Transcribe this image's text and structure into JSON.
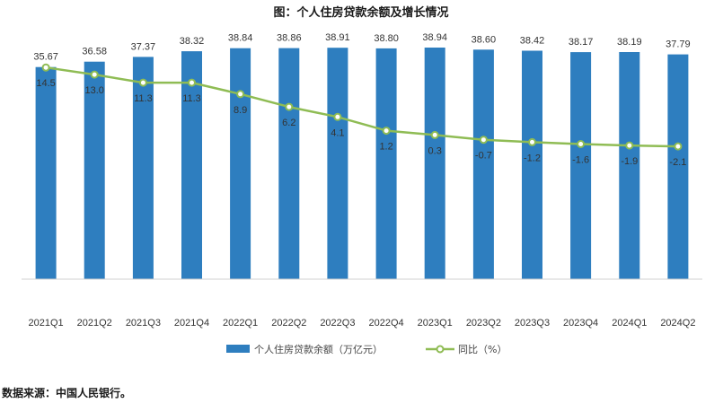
{
  "chart_data": {
    "type": "bar+line",
    "title": "图：个人住房贷款余额及增长情况",
    "categories": [
      "2021Q1",
      "2021Q2",
      "2021Q3",
      "2021Q4",
      "2022Q1",
      "2022Q2",
      "2022Q3",
      "2022Q4",
      "2023Q1",
      "2023Q2",
      "2023Q3",
      "2023Q4",
      "2024Q1",
      "2024Q2"
    ],
    "series": [
      {
        "name": "个人住房贷款余额（万亿元）",
        "kind": "bar",
        "color": "#2e7ebf",
        "values": [
          35.67,
          36.58,
          37.37,
          38.32,
          38.84,
          38.86,
          38.91,
          38.8,
          38.94,
          38.6,
          38.42,
          38.17,
          38.19,
          37.79
        ],
        "labels": [
          "35.67",
          "36.58",
          "37.37",
          "38.32",
          "38.84",
          "38.86",
          "38.91",
          "38.80",
          "38.94",
          "38.60",
          "38.42",
          "38.17",
          "38.19",
          "37.79"
        ]
      },
      {
        "name": "同比（%）",
        "kind": "line",
        "color": "#8fbc54",
        "values": [
          14.5,
          13.0,
          11.3,
          11.3,
          8.9,
          6.2,
          4.1,
          1.2,
          0.3,
          -0.7,
          -1.2,
          -1.6,
          -1.9,
          -2.1
        ],
        "labels": [
          "14.5",
          "13.0",
          "11.3",
          "11.3",
          "8.9",
          "6.2",
          "4.1",
          "1.2",
          "0.3",
          "-0.7",
          "-1.2",
          "-1.6",
          "-1.9",
          "-2.1"
        ]
      }
    ],
    "bar_axis_range": [
      0,
      40
    ],
    "line_axis_range": [
      -30,
      20
    ],
    "axes_visible": false,
    "gridlines": false,
    "legend_position": "bottom-center"
  },
  "source_note": "数据来源：中国人民银行。"
}
